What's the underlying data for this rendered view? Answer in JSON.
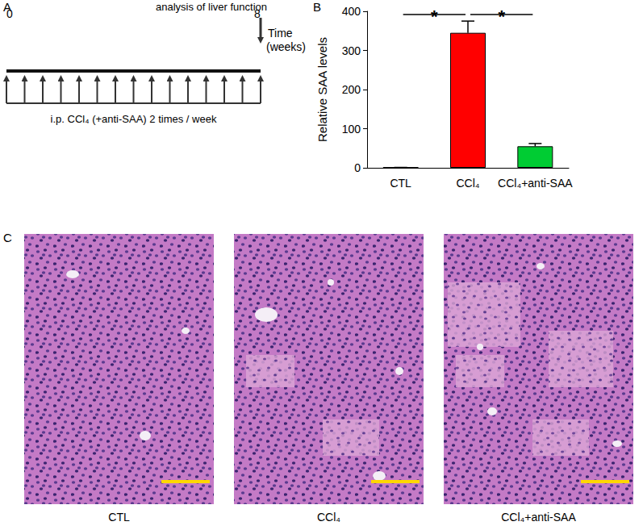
{
  "panel_labels": [
    "A",
    "B",
    "C"
  ],
  "timeline": {
    "title": "analysis of liver function",
    "xlim": [
      0,
      8
    ],
    "xticks": [
      0,
      8
    ],
    "axis_label": [
      "Time",
      "(weeks)"
    ],
    "injection_label": "i.p. CCl₄ (+anti-SAA) 2 times / week",
    "injections": 15
  },
  "chart_data": {
    "type": "bar",
    "ylabel": "Relative SAA levels",
    "categories": [
      "CTL",
      "CCl₄",
      "CCl₄+anti-SAA"
    ],
    "values": [
      1,
      345,
      55
    ],
    "errors": [
      0,
      30,
      7
    ],
    "colors": [
      "#000000",
      "#ff0000",
      "#00cc33"
    ],
    "ylim": [
      0,
      400
    ],
    "yticks": [
      0,
      100,
      200,
      300,
      400
    ],
    "grid": false,
    "significance": [
      {
        "from": "CTL",
        "to": "CCl₄",
        "label": "*"
      },
      {
        "from": "CCl₄",
        "to": "CCl₄+anti-SAA",
        "label": "*"
      }
    ]
  },
  "micrographs": {
    "captions": [
      "CTL",
      "CCl₄",
      "CCl₄+anti-SAA"
    ]
  }
}
